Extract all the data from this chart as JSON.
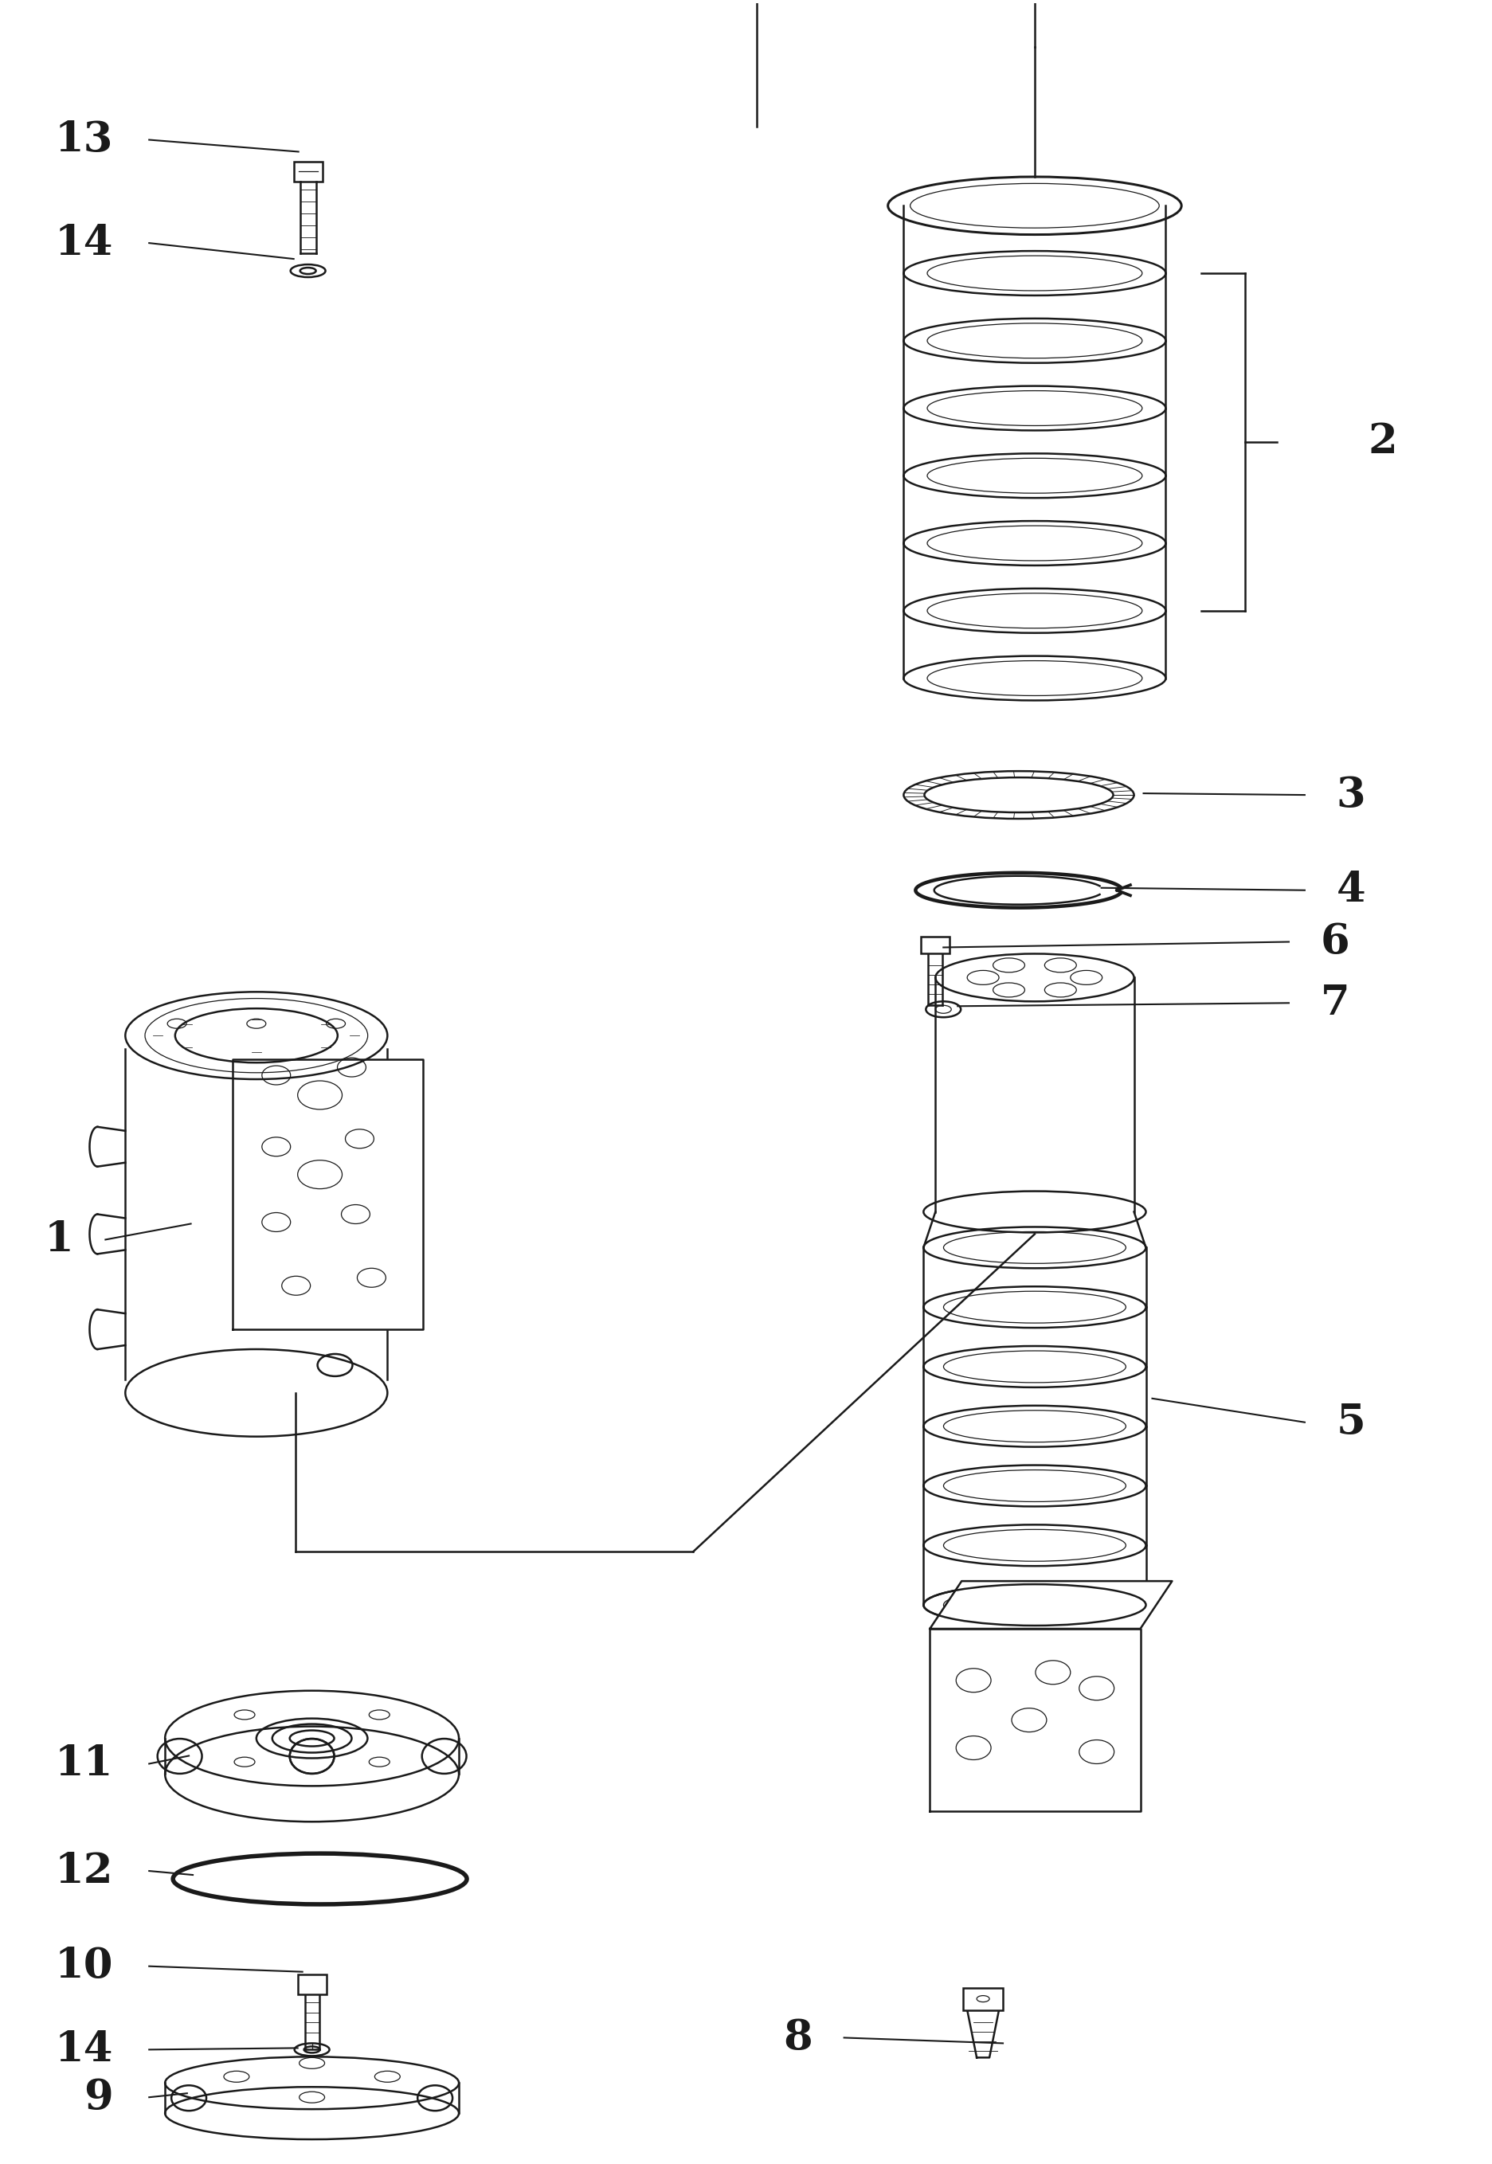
{
  "bg_color": "#ffffff",
  "line_color": "#1a1a1a",
  "fig_width": 18.73,
  "fig_height": 27.17,
  "lw": 1.8,
  "tlw": 0.9
}
